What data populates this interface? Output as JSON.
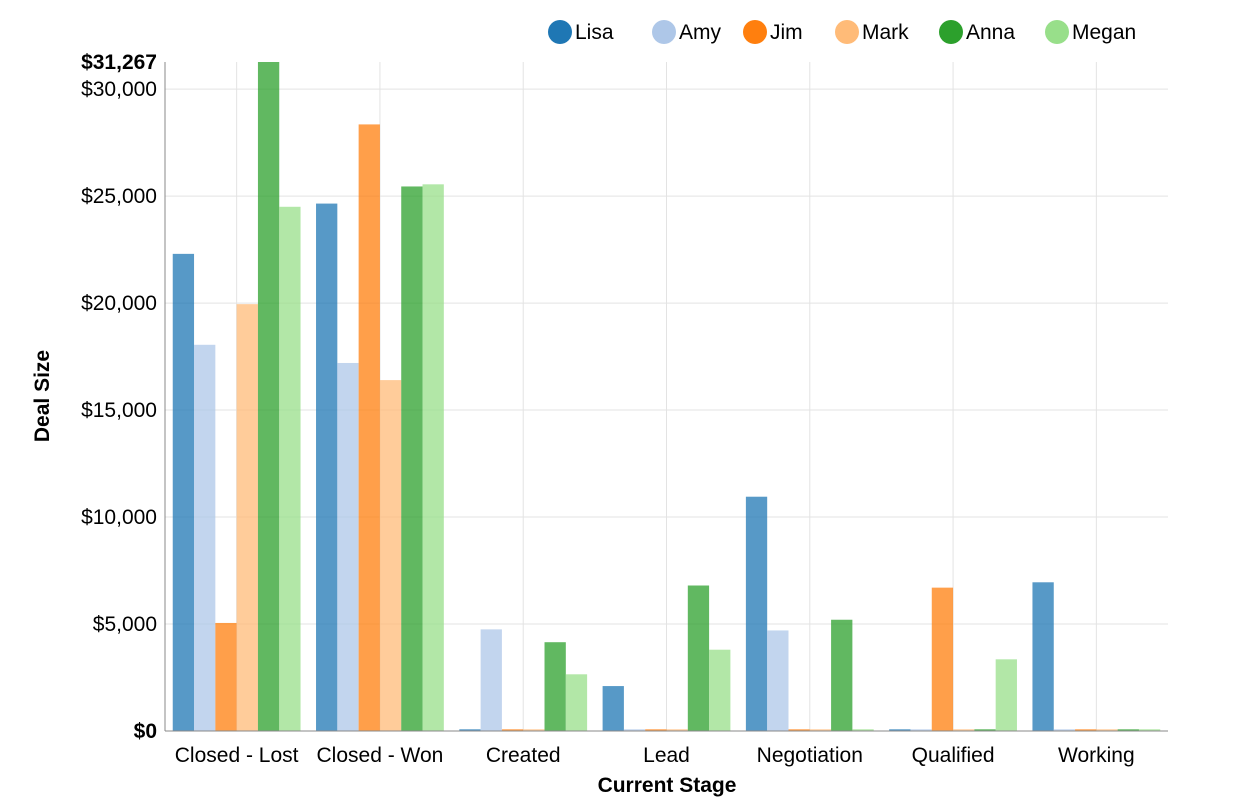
{
  "chart_data": {
    "type": "bar",
    "title": "",
    "xlabel": "Current Stage",
    "ylabel": "Deal Size",
    "categories": [
      "Closed - Lost",
      "Closed - Won",
      "Created",
      "Lead",
      "Negotiation",
      "Qualified",
      "Working"
    ],
    "ylim": [
      0,
      31267
    ],
    "y_ticks": [
      0,
      5000,
      10000,
      15000,
      20000,
      25000,
      30000
    ],
    "y_tick_labels": [
      "$0",
      "$5,000",
      "$10,000",
      "$15,000",
      "$20,000",
      "$25,000",
      "$30,000"
    ],
    "y_max_label": "$31,267",
    "grid": true,
    "legend_position": "top-right",
    "series": [
      {
        "name": "Lisa",
        "color": "#1f77b4",
        "values": [
          22300,
          24650,
          80,
          2100,
          10950,
          80,
          6950
        ]
      },
      {
        "name": "Amy",
        "color": "#aec7e8",
        "values": [
          18050,
          17200,
          4750,
          80,
          4700,
          80,
          80
        ]
      },
      {
        "name": "Jim",
        "color": "#ff7f0e",
        "values": [
          5050,
          28350,
          80,
          80,
          80,
          6700,
          80
        ]
      },
      {
        "name": "Mark",
        "color": "#ffbb78",
        "values": [
          19950,
          16400,
          80,
          80,
          80,
          80,
          80
        ]
      },
      {
        "name": "Anna",
        "color": "#2ca02c",
        "values": [
          31267,
          25450,
          4150,
          6800,
          5200,
          80,
          80
        ]
      },
      {
        "name": "Megan",
        "color": "#98df8a",
        "values": [
          24500,
          25550,
          2650,
          3800,
          80,
          3350,
          80
        ]
      }
    ]
  }
}
